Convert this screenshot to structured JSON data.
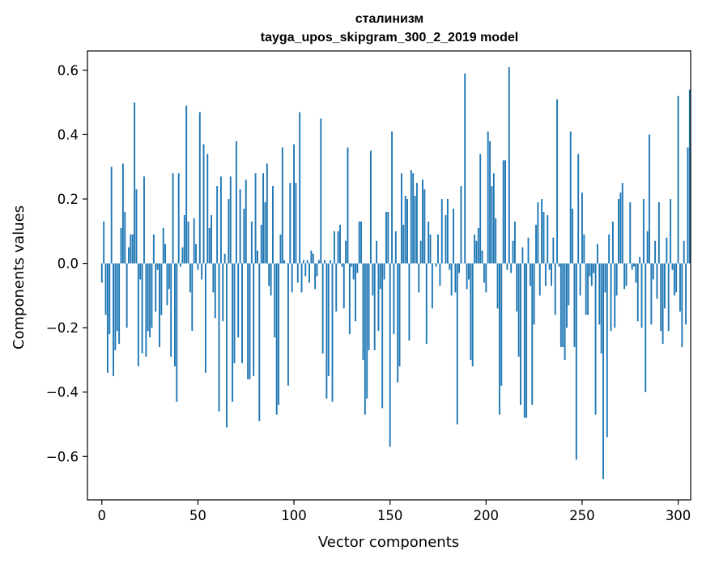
{
  "chart_data": {
    "type": "bar",
    "title": "сталинизм",
    "subtitle": "tayga_upos_skipgram_300_2_2019 model",
    "xlabel": "Vector components",
    "ylabel": "Components values",
    "xlim": [
      -7.5,
      306.5
    ],
    "ylim": [
      -0.735,
      0.66
    ],
    "x_ticks": [
      0,
      50,
      100,
      150,
      200,
      250,
      300
    ],
    "y_ticks": [
      -0.6,
      -0.4,
      -0.2,
      0.0,
      0.2,
      0.4,
      0.6
    ],
    "y_tick_labels": [
      "−0.6",
      "−0.4",
      "−0.2",
      "0.0",
      "0.2",
      "0.4",
      "0.6"
    ],
    "bar_color": "#1f77b4",
    "values": [
      -0.06,
      0.13,
      -0.16,
      -0.34,
      -0.22,
      0.3,
      -0.35,
      -0.27,
      -0.21,
      -0.25,
      0.11,
      0.31,
      0.16,
      -0.2,
      0.05,
      0.09,
      0.09,
      0.5,
      0.23,
      -0.32,
      -0.05,
      -0.28,
      0.27,
      -0.29,
      -0.21,
      -0.23,
      -0.2,
      0.09,
      -0.15,
      -0.02,
      -0.26,
      -0.16,
      0.11,
      0.06,
      -0.13,
      -0.08,
      -0.29,
      0.28,
      -0.32,
      -0.43,
      0.28,
      -0.01,
      0.05,
      0.15,
      0.49,
      0.13,
      -0.09,
      -0.21,
      0.14,
      0.06,
      -0.02,
      0.47,
      -0.05,
      0.37,
      -0.34,
      0.34,
      0.11,
      0.15,
      -0.09,
      -0.17,
      0.24,
      -0.46,
      0.27,
      -0.18,
      0.03,
      -0.51,
      0.2,
      0.27,
      -0.43,
      -0.31,
      0.38,
      -0.23,
      0.23,
      -0.31,
      0.17,
      0.26,
      -0.36,
      -0.36,
      0.13,
      -0.35,
      0.28,
      0.04,
      -0.49,
      0.12,
      0.28,
      0.19,
      0.31,
      -0.07,
      -0.1,
      0.24,
      -0.23,
      -0.47,
      -0.44,
      0.09,
      0.36,
      0.01,
      0.0,
      -0.38,
      0.25,
      -0.09,
      0.37,
      0.25,
      -0.06,
      0.47,
      -0.09,
      0.01,
      -0.04,
      0.01,
      -0.06,
      0.04,
      0.03,
      -0.08,
      -0.04,
      0.01,
      0.45,
      -0.28,
      0.01,
      -0.42,
      -0.35,
      0.01,
      -0.43,
      0.1,
      -0.15,
      0.1,
      0.12,
      -0.01,
      -0.14,
      0.07,
      0.36,
      -0.22,
      -0.01,
      -0.05,
      -0.18,
      -0.03,
      0.13,
      0.13,
      -0.3,
      -0.47,
      -0.42,
      -0.27,
      0.35,
      -0.1,
      -0.27,
      0.07,
      -0.21,
      -0.08,
      -0.45,
      -0.05,
      0.16,
      0.16,
      -0.57,
      0.41,
      -0.22,
      0.1,
      -0.37,
      -0.32,
      0.28,
      0.12,
      0.21,
      0.2,
      -0.24,
      0.29,
      0.28,
      0.21,
      0.25,
      -0.09,
      0.07,
      0.26,
      0.23,
      -0.25,
      0.13,
      0.09,
      -0.14,
      0.0,
      -0.01,
      0.09,
      -0.07,
      0.2,
      0.0,
      0.15,
      0.2,
      -0.02,
      -0.1,
      0.17,
      -0.09,
      -0.5,
      -0.03,
      0.24,
      0.0,
      0.59,
      -0.08,
      -0.05,
      -0.3,
      -0.32,
      0.09,
      0.07,
      0.11,
      0.34,
      0.04,
      -0.06,
      -0.09,
      0.41,
      0.38,
      0.24,
      0.28,
      0.14,
      -0.14,
      -0.47,
      -0.38,
      0.32,
      0.32,
      -0.02,
      0.61,
      -0.03,
      0.07,
      0.13,
      -0.15,
      -0.29,
      -0.44,
      0.05,
      -0.48,
      -0.48,
      0.08,
      -0.07,
      -0.44,
      -0.19,
      0.12,
      0.19,
      -0.1,
      0.2,
      0.16,
      -0.07,
      0.15,
      -0.02,
      -0.07,
      0.08,
      -0.16,
      0.51,
      -0.01,
      -0.26,
      -0.26,
      -0.3,
      -0.2,
      -0.13,
      0.41,
      0.17,
      -0.26,
      -0.61,
      0.34,
      -0.1,
      0.22,
      0.09,
      -0.16,
      -0.16,
      -0.04,
      -0.07,
      -0.03,
      -0.47,
      0.06,
      -0.19,
      -0.28,
      -0.67,
      -0.09,
      -0.54,
      0.09,
      -0.21,
      0.13,
      -0.2,
      -0.1,
      0.2,
      0.22,
      0.25,
      -0.08,
      -0.07,
      0.0,
      0.19,
      -0.02,
      -0.01,
      -0.06,
      -0.18,
      0.02,
      -0.2,
      0.2,
      -0.4,
      0.1,
      0.4,
      -0.19,
      -0.05,
      0.07,
      -0.11,
      0.19,
      -0.21,
      -0.25,
      -0.14,
      0.08,
      -0.21,
      0.2,
      -0.02,
      -0.1,
      -0.09,
      0.52,
      -0.15,
      -0.26,
      0.07,
      -0.19,
      0.36,
      0.54
    ]
  }
}
